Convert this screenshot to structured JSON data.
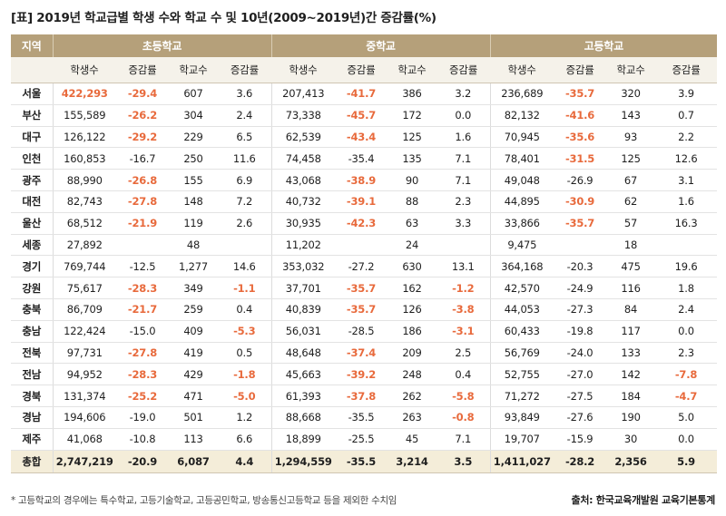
{
  "title": "[표] 2019년 학교급별 학생 수와 학교 수 및 10년(2009~2019년)간 증감률(%)",
  "header": {
    "region": "지역",
    "groups": [
      "초등학교",
      "중학교",
      "고등학교"
    ],
    "subs": [
      "학생수",
      "증감률",
      "학교수",
      "증감률"
    ]
  },
  "rows": [
    {
      "region": "서울",
      "cells": [
        [
          "422,293",
          1
        ],
        [
          "-29.4",
          1
        ],
        [
          "607",
          0
        ],
        [
          "3.6",
          0
        ],
        [
          "207,413",
          0
        ],
        [
          "-41.7",
          1
        ],
        [
          "386",
          0
        ],
        [
          "3.2",
          0
        ],
        [
          "236,689",
          0
        ],
        [
          "-35.7",
          1
        ],
        [
          "320",
          0
        ],
        [
          "3.9",
          0
        ]
      ]
    },
    {
      "region": "부산",
      "cells": [
        [
          "155,589",
          0
        ],
        [
          "-26.2",
          1
        ],
        [
          "304",
          0
        ],
        [
          "2.4",
          0
        ],
        [
          "73,338",
          0
        ],
        [
          "-45.7",
          1
        ],
        [
          "172",
          0
        ],
        [
          "0.0",
          0
        ],
        [
          "82,132",
          0
        ],
        [
          "-41.6",
          1
        ],
        [
          "143",
          0
        ],
        [
          "0.7",
          0
        ]
      ]
    },
    {
      "region": "대구",
      "cells": [
        [
          "126,122",
          0
        ],
        [
          "-29.2",
          1
        ],
        [
          "229",
          0
        ],
        [
          "6.5",
          0
        ],
        [
          "62,539",
          0
        ],
        [
          "-43.4",
          1
        ],
        [
          "125",
          0
        ],
        [
          "1.6",
          0
        ],
        [
          "70,945",
          0
        ],
        [
          "-35.6",
          1
        ],
        [
          "93",
          0
        ],
        [
          "2.2",
          0
        ]
      ]
    },
    {
      "region": "인천",
      "cells": [
        [
          "160,853",
          0
        ],
        [
          "-16.7",
          0
        ],
        [
          "250",
          0
        ],
        [
          "11.6",
          0
        ],
        [
          "74,458",
          0
        ],
        [
          "-35.4",
          0
        ],
        [
          "135",
          0
        ],
        [
          "7.1",
          0
        ],
        [
          "78,401",
          0
        ],
        [
          "-31.5",
          1
        ],
        [
          "125",
          0
        ],
        [
          "12.6",
          0
        ]
      ]
    },
    {
      "region": "광주",
      "cells": [
        [
          "88,990",
          0
        ],
        [
          "-26.8",
          1
        ],
        [
          "155",
          0
        ],
        [
          "6.9",
          0
        ],
        [
          "43,068",
          0
        ],
        [
          "-38.9",
          1
        ],
        [
          "90",
          0
        ],
        [
          "7.1",
          0
        ],
        [
          "49,048",
          0
        ],
        [
          "-26.9",
          0
        ],
        [
          "67",
          0
        ],
        [
          "3.1",
          0
        ]
      ]
    },
    {
      "region": "대전",
      "cells": [
        [
          "82,743",
          0
        ],
        [
          "-27.8",
          1
        ],
        [
          "148",
          0
        ],
        [
          "7.2",
          0
        ],
        [
          "40,732",
          0
        ],
        [
          "-39.1",
          1
        ],
        [
          "88",
          0
        ],
        [
          "2.3",
          0
        ],
        [
          "44,895",
          0
        ],
        [
          "-30.9",
          1
        ],
        [
          "62",
          0
        ],
        [
          "1.6",
          0
        ]
      ]
    },
    {
      "region": "울산",
      "cells": [
        [
          "68,512",
          0
        ],
        [
          "-21.9",
          1
        ],
        [
          "119",
          0
        ],
        [
          "2.6",
          0
        ],
        [
          "30,935",
          0
        ],
        [
          "-42.3",
          1
        ],
        [
          "63",
          0
        ],
        [
          "3.3",
          0
        ],
        [
          "33,866",
          0
        ],
        [
          "-35.7",
          1
        ],
        [
          "57",
          0
        ],
        [
          "16.3",
          0
        ]
      ]
    },
    {
      "region": "세종",
      "cells": [
        [
          "27,892",
          0
        ],
        [
          "",
          0
        ],
        [
          "48",
          0
        ],
        [
          "",
          0
        ],
        [
          "11,202",
          0
        ],
        [
          "",
          0
        ],
        [
          "24",
          0
        ],
        [
          "",
          0
        ],
        [
          "9,475",
          0
        ],
        [
          "",
          0
        ],
        [
          "18",
          0
        ],
        [
          "",
          0
        ]
      ]
    },
    {
      "region": "경기",
      "cells": [
        [
          "769,744",
          0
        ],
        [
          "-12.5",
          0
        ],
        [
          "1,277",
          0
        ],
        [
          "14.6",
          0
        ],
        [
          "353,032",
          0
        ],
        [
          "-27.2",
          0
        ],
        [
          "630",
          0
        ],
        [
          "13.1",
          0
        ],
        [
          "364,168",
          0
        ],
        [
          "-20.3",
          0
        ],
        [
          "475",
          0
        ],
        [
          "19.6",
          0
        ]
      ]
    },
    {
      "region": "강원",
      "cells": [
        [
          "75,617",
          0
        ],
        [
          "-28.3",
          1
        ],
        [
          "349",
          0
        ],
        [
          "-1.1",
          1
        ],
        [
          "37,701",
          0
        ],
        [
          "-35.7",
          1
        ],
        [
          "162",
          0
        ],
        [
          "-1.2",
          1
        ],
        [
          "42,570",
          0
        ],
        [
          "-24.9",
          0
        ],
        [
          "116",
          0
        ],
        [
          "1.8",
          0
        ]
      ]
    },
    {
      "region": "충북",
      "cells": [
        [
          "86,709",
          0
        ],
        [
          "-21.7",
          1
        ],
        [
          "259",
          0
        ],
        [
          "0.4",
          0
        ],
        [
          "40,839",
          0
        ],
        [
          "-35.7",
          1
        ],
        [
          "126",
          0
        ],
        [
          "-3.8",
          1
        ],
        [
          "44,053",
          0
        ],
        [
          "-27.3",
          0
        ],
        [
          "84",
          0
        ],
        [
          "2.4",
          0
        ]
      ]
    },
    {
      "region": "충남",
      "cells": [
        [
          "122,424",
          0
        ],
        [
          "-15.0",
          0
        ],
        [
          "409",
          0
        ],
        [
          "-5.3",
          1
        ],
        [
          "56,031",
          0
        ],
        [
          "-28.5",
          0
        ],
        [
          "186",
          0
        ],
        [
          "-3.1",
          1
        ],
        [
          "60,433",
          0
        ],
        [
          "-19.8",
          0
        ],
        [
          "117",
          0
        ],
        [
          "0.0",
          0
        ]
      ]
    },
    {
      "region": "전북",
      "cells": [
        [
          "97,731",
          0
        ],
        [
          "-27.8",
          1
        ],
        [
          "419",
          0
        ],
        [
          "0.5",
          0
        ],
        [
          "48,648",
          0
        ],
        [
          "-37.4",
          1
        ],
        [
          "209",
          0
        ],
        [
          "2.5",
          0
        ],
        [
          "56,769",
          0
        ],
        [
          "-24.0",
          0
        ],
        [
          "133",
          0
        ],
        [
          "2.3",
          0
        ]
      ]
    },
    {
      "region": "전남",
      "cells": [
        [
          "94,952",
          0
        ],
        [
          "-28.3",
          1
        ],
        [
          "429",
          0
        ],
        [
          "-1.8",
          1
        ],
        [
          "45,663",
          0
        ],
        [
          "-39.2",
          1
        ],
        [
          "248",
          0
        ],
        [
          "0.4",
          0
        ],
        [
          "52,755",
          0
        ],
        [
          "-27.0",
          0
        ],
        [
          "142",
          0
        ],
        [
          "-7.8",
          1
        ]
      ]
    },
    {
      "region": "경북",
      "cells": [
        [
          "131,374",
          0
        ],
        [
          "-25.2",
          1
        ],
        [
          "471",
          0
        ],
        [
          "-5.0",
          1
        ],
        [
          "61,393",
          0
        ],
        [
          "-37.8",
          1
        ],
        [
          "262",
          0
        ],
        [
          "-5.8",
          1
        ],
        [
          "71,272",
          0
        ],
        [
          "-27.5",
          0
        ],
        [
          "184",
          0
        ],
        [
          "-4.7",
          1
        ]
      ]
    },
    {
      "region": "경남",
      "cells": [
        [
          "194,606",
          0
        ],
        [
          "-19.0",
          0
        ],
        [
          "501",
          0
        ],
        [
          "1.2",
          0
        ],
        [
          "88,668",
          0
        ],
        [
          "-35.5",
          0
        ],
        [
          "263",
          0
        ],
        [
          "-0.8",
          1
        ],
        [
          "93,849",
          0
        ],
        [
          "-27.6",
          0
        ],
        [
          "190",
          0
        ],
        [
          "5.0",
          0
        ]
      ]
    },
    {
      "region": "제주",
      "cells": [
        [
          "41,068",
          0
        ],
        [
          "-10.8",
          0
        ],
        [
          "113",
          0
        ],
        [
          "6.6",
          0
        ],
        [
          "18,899",
          0
        ],
        [
          "-25.5",
          0
        ],
        [
          "45",
          0
        ],
        [
          "7.1",
          0
        ],
        [
          "19,707",
          0
        ],
        [
          "-15.9",
          0
        ],
        [
          "30",
          0
        ],
        [
          "0.0",
          0
        ]
      ]
    }
  ],
  "total": {
    "region": "총합",
    "cells": [
      "2,747,219",
      "-20.9",
      "6,087",
      "4.4",
      "1,294,559",
      "-35.5",
      "3,214",
      "3.5",
      "1,411,027",
      "-28.2",
      "2,356",
      "5.9"
    ]
  },
  "note": "* 고등학교의 경우에는 특수학교, 고등기술학교, 고등공민학교, 방송통신고등학교 등을 제외한 수치임",
  "source": "출처: 한국교육개발원 교육기본통계",
  "colors": {
    "header_bg": "#b5a07a",
    "subheader_bg": "#f5f2ea",
    "total_bg": "#f4edd9",
    "negative_highlight": "#e86a3c"
  }
}
